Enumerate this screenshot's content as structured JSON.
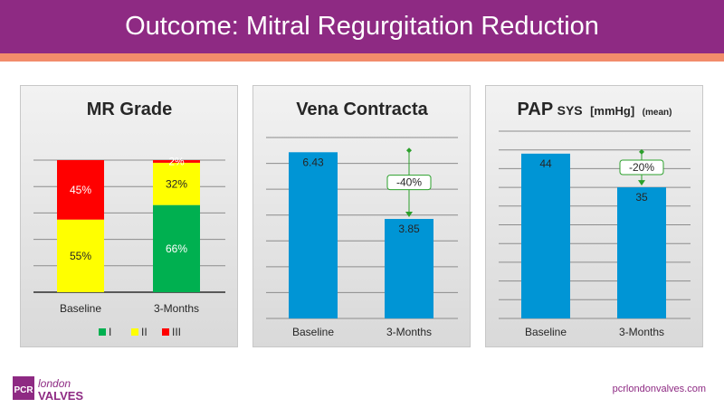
{
  "header": {
    "title": "Outcome: Mitral Regurgitation Reduction"
  },
  "footer": {
    "url": "pcrlondonvalves.com",
    "logo_text": "PCR",
    "logo_line1": "london",
    "logo_line2": "VALVES"
  },
  "colors": {
    "purple": "#8e2a83",
    "accent": "#f28c6b",
    "blue": "#0095d5",
    "green": "#00b050",
    "yellow": "#ffff00",
    "red": "#ff0000",
    "arrow": "#2ca02c"
  },
  "chart_data": [
    {
      "type": "bar",
      "stacked": true,
      "title": "MR Grade",
      "categories": [
        "Baseline",
        "3-Months"
      ],
      "series": [
        {
          "name": "I",
          "values": [
            0,
            66
          ],
          "labels": [
            "",
            "66%"
          ]
        },
        {
          "name": "II",
          "values": [
            55,
            32
          ],
          "labels": [
            "55%",
            "32%"
          ]
        },
        {
          "name": "III",
          "values": [
            45,
            2
          ],
          "labels": [
            "45%",
            "2%"
          ]
        }
      ],
      "ylim": [
        0,
        100
      ],
      "legend": "bottom"
    },
    {
      "type": "bar",
      "title": "Vena Contracta",
      "categories": [
        "Baseline",
        "3-Months"
      ],
      "values": [
        6.43,
        3.85
      ],
      "labels": [
        "6.43",
        "3.85"
      ],
      "ylim": [
        0,
        7
      ],
      "annotation": "-40%"
    },
    {
      "type": "bar",
      "title_main": "PAP",
      "title_sub": "SYS",
      "title_unit": "[mmHg]",
      "title_note": "(mean)",
      "categories": [
        "Baseline",
        "3-Months"
      ],
      "values": [
        44,
        35
      ],
      "labels": [
        "44",
        "35"
      ],
      "ylim": [
        0,
        50
      ],
      "annotation": "-20%"
    }
  ]
}
